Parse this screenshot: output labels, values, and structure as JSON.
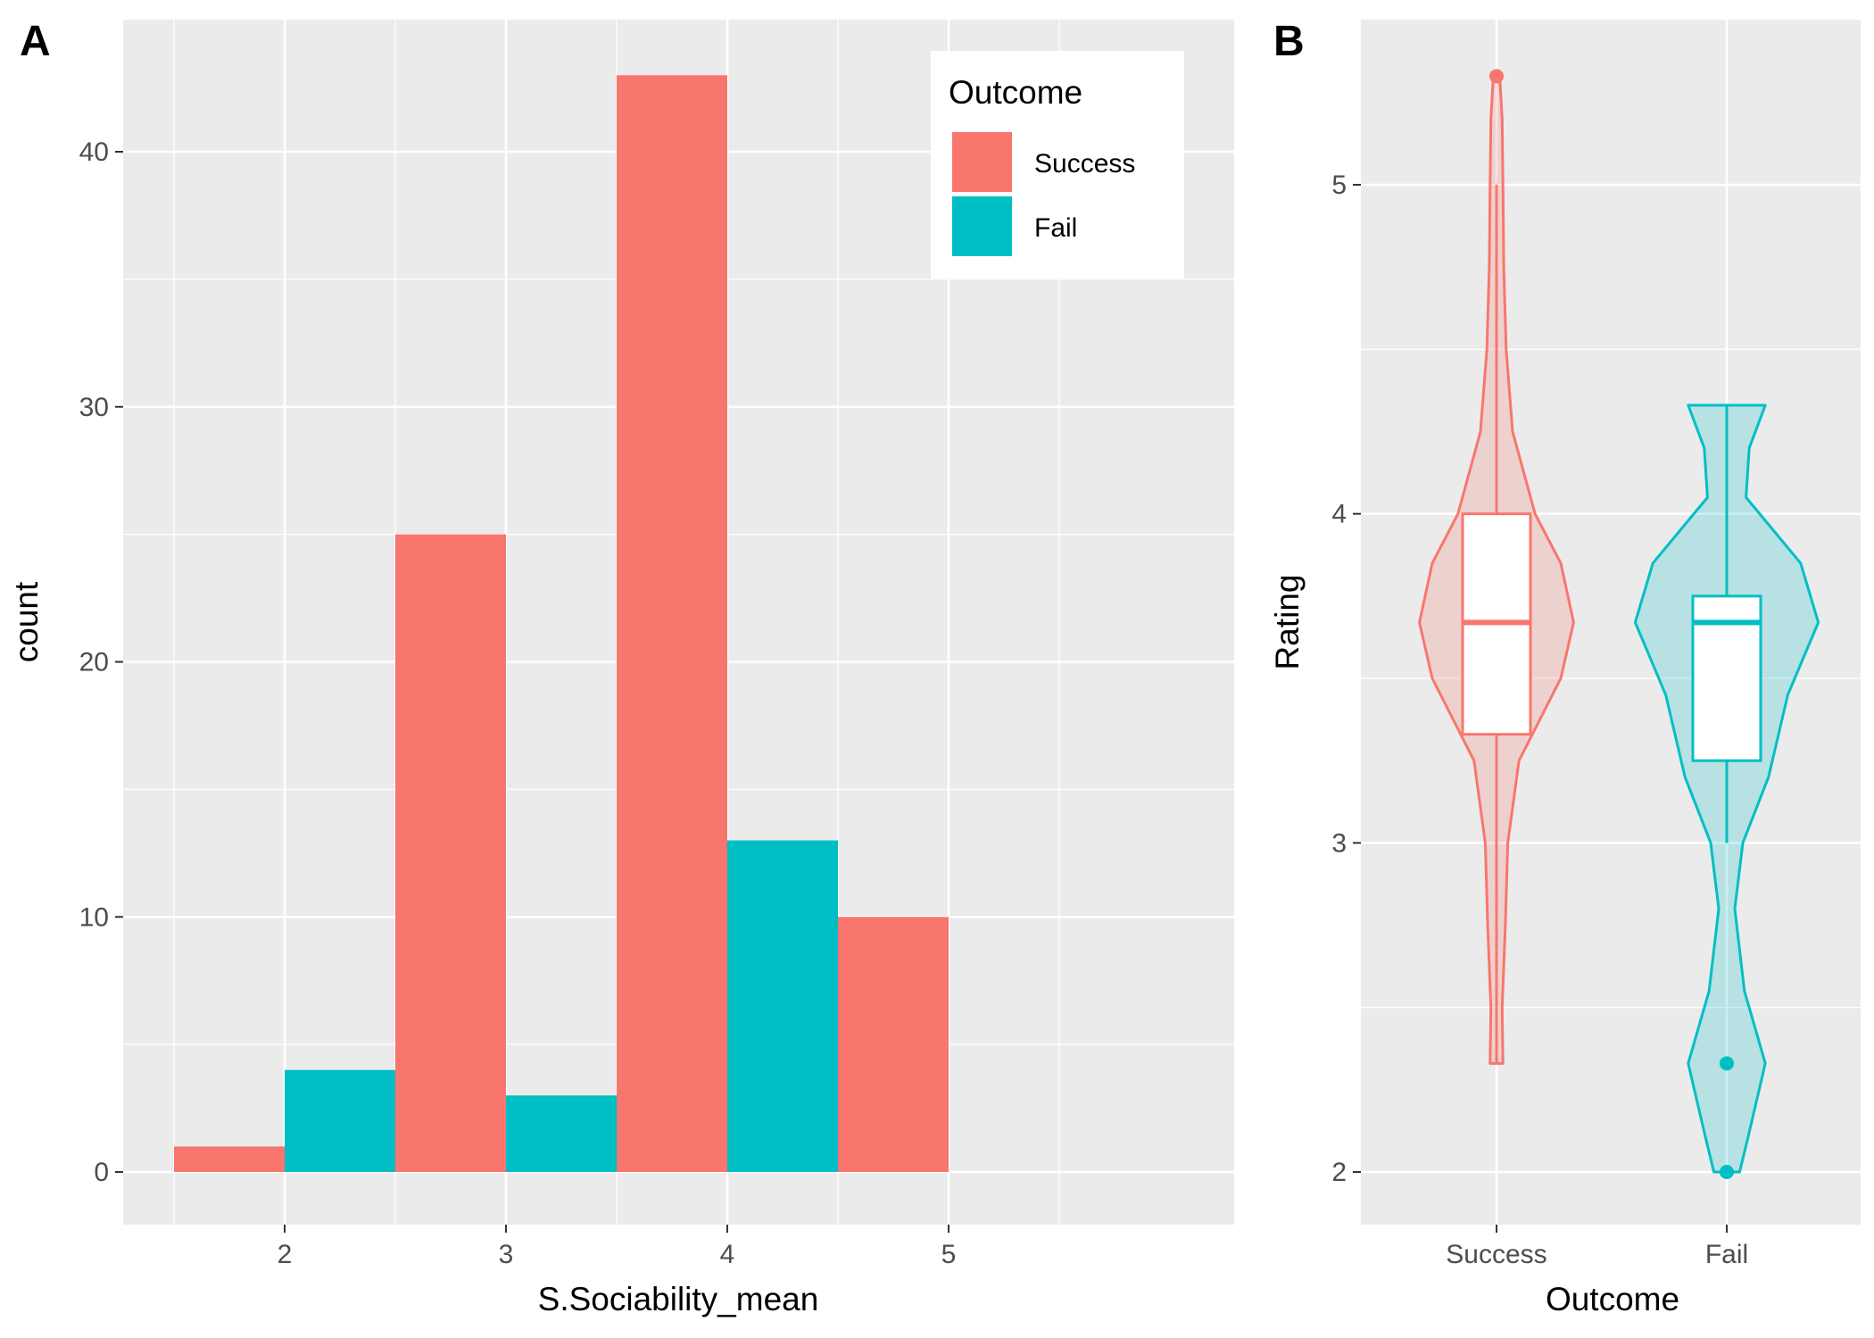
{
  "panels": {
    "a": "A",
    "b": "B"
  },
  "colors": {
    "success": "#F8766D",
    "fail": "#00BFC4",
    "panel_bg": "#EBEBEB",
    "grid": "#FFFFFF"
  },
  "chart_data": [
    {
      "type": "bar",
      "panel": "A",
      "xlabel": "S.Sociability_mean",
      "ylabel": "count",
      "xlim": [
        1.5,
        5.5
      ],
      "ylim": [
        0,
        45
      ],
      "xticks": [
        "2",
        "3",
        "4",
        "5"
      ],
      "yticks": [
        "0",
        "10",
        "20",
        "30",
        "40"
      ],
      "grid": true,
      "legend": {
        "title": "Outcome",
        "position": "top-right",
        "entries": [
          "Success",
          "Fail"
        ]
      },
      "bars": [
        {
          "x_start": 1.5,
          "x_end": 2.0,
          "series": "Success",
          "value": 1
        },
        {
          "x_start": 2.0,
          "x_end": 2.5,
          "series": "Fail",
          "value": 4
        },
        {
          "x_start": 2.5,
          "x_end": 3.0,
          "series": "Success",
          "value": 25
        },
        {
          "x_start": 3.0,
          "x_end": 3.5,
          "series": "Fail",
          "value": 3
        },
        {
          "x_start": 3.5,
          "x_end": 4.0,
          "series": "Success",
          "value": 43
        },
        {
          "x_start": 4.0,
          "x_end": 4.5,
          "series": "Fail",
          "value": 13
        },
        {
          "x_start": 4.5,
          "x_end": 5.0,
          "series": "Success",
          "value": 10
        }
      ]
    },
    {
      "type": "violin",
      "panel": "B",
      "xlabel": "Outcome",
      "ylabel": "Rating",
      "ylim": [
        1.85,
        5.45
      ],
      "yticks": [
        "2",
        "3",
        "4",
        "5"
      ],
      "categories": [
        "Success",
        "Fail"
      ],
      "grid": true,
      "groups": [
        {
          "name": "Success",
          "box": {
            "q1": 3.33,
            "median": 3.67,
            "q3": 4.0,
            "whisker_low": 2.33,
            "whisker_high": 5.0
          },
          "outliers": [
            5.33
          ],
          "density": [
            [
              2.33,
              0.04
            ],
            [
              2.5,
              0.035
            ],
            [
              2.75,
              0.055
            ],
            [
              3.0,
              0.07
            ],
            [
              3.25,
              0.14
            ],
            [
              3.5,
              0.4
            ],
            [
              3.67,
              0.48
            ],
            [
              3.85,
              0.4
            ],
            [
              4.0,
              0.24
            ],
            [
              4.25,
              0.1
            ],
            [
              4.5,
              0.06
            ],
            [
              4.75,
              0.045
            ],
            [
              5.0,
              0.04
            ],
            [
              5.2,
              0.035
            ],
            [
              5.33,
              0.02
            ]
          ]
        },
        {
          "name": "Fail",
          "box": {
            "q1": 3.25,
            "median": 3.67,
            "q3": 3.75,
            "whisker_low": 3.0,
            "whisker_high": 4.33
          },
          "outliers": [
            2.33,
            2.0
          ],
          "density": [
            [
              2.0,
              0.08
            ],
            [
              2.1,
              0.13
            ],
            [
              2.33,
              0.24
            ],
            [
              2.55,
              0.11
            ],
            [
              2.8,
              0.05
            ],
            [
              3.0,
              0.1
            ],
            [
              3.2,
              0.26
            ],
            [
              3.45,
              0.38
            ],
            [
              3.67,
              0.57
            ],
            [
              3.85,
              0.46
            ],
            [
              4.05,
              0.12
            ],
            [
              4.2,
              0.14
            ],
            [
              4.33,
              0.24
            ]
          ]
        }
      ]
    }
  ]
}
